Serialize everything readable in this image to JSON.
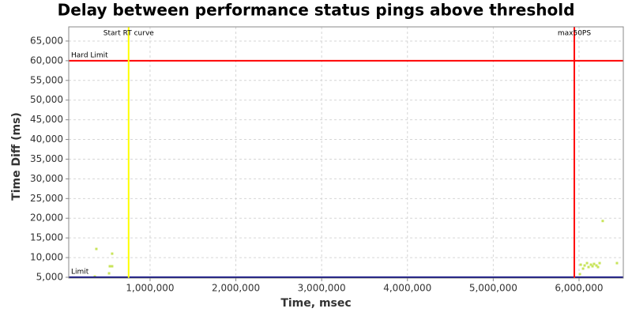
{
  "chart_data": {
    "type": "scatter",
    "title": "Delay between performance status pings above threshold",
    "x_label": "Time, msec",
    "y_label": "Time Diff (ms)",
    "color": "#c8e45a",
    "x": [
      374000,
      558000,
      531000,
      558000,
      522000,
      356000,
      6020000,
      6047000,
      6065000,
      6093000,
      6111000,
      6139000,
      6157000,
      6175000,
      6203000,
      6221000,
      6240000,
      6010000,
      6276000,
      6442000
    ],
    "values": [
      12200,
      11000,
      7800,
      7800,
      6000,
      5200,
      8200,
      7200,
      8000,
      8600,
      7600,
      8200,
      7800,
      8400,
      8000,
      7600,
      8600,
      5800,
      19300,
      8600
    ],
    "xlim": [
      52000,
      6516000
    ],
    "ylim": [
      4800,
      68600
    ],
    "xticks": [
      {
        "value": 1000000,
        "label": "1,000,000"
      },
      {
        "value": 2000000,
        "label": "2,000,000"
      },
      {
        "value": 3000000,
        "label": "3,000,000"
      },
      {
        "value": 4000000,
        "label": "4,000,000"
      },
      {
        "value": 5000000,
        "label": "5,000,000"
      },
      {
        "value": 6000000,
        "label": "6,000,000"
      }
    ],
    "yticks": [
      {
        "value": 5000,
        "label": "5,000"
      },
      {
        "value": 10000,
        "label": "10,000"
      },
      {
        "value": 15000,
        "label": "15,000"
      },
      {
        "value": 20000,
        "label": "20,000"
      },
      {
        "value": 25000,
        "label": "25,000"
      },
      {
        "value": 30000,
        "label": "30,000"
      },
      {
        "value": 35000,
        "label": "35,000"
      },
      {
        "value": 40000,
        "label": "40,000"
      },
      {
        "value": 45000,
        "label": "45,000"
      },
      {
        "value": 50000,
        "label": "50,000"
      },
      {
        "value": 55000,
        "label": "55,000"
      },
      {
        "value": 60000,
        "label": "60,000"
      },
      {
        "value": 65000,
        "label": "65,000"
      }
    ],
    "grid": true,
    "x_markers": [
      {
        "label": "Start RT curve",
        "x": 750000,
        "color": "#ffff00"
      },
      {
        "label": "max50PS",
        "x": 5945000,
        "color": "#ff0000"
      }
    ],
    "y_markers": [
      {
        "label": "Hard Limit",
        "y": 60000,
        "color": "#ff0000"
      },
      {
        "label": "Limit",
        "y": 5000,
        "color": "#000080"
      }
    ]
  }
}
